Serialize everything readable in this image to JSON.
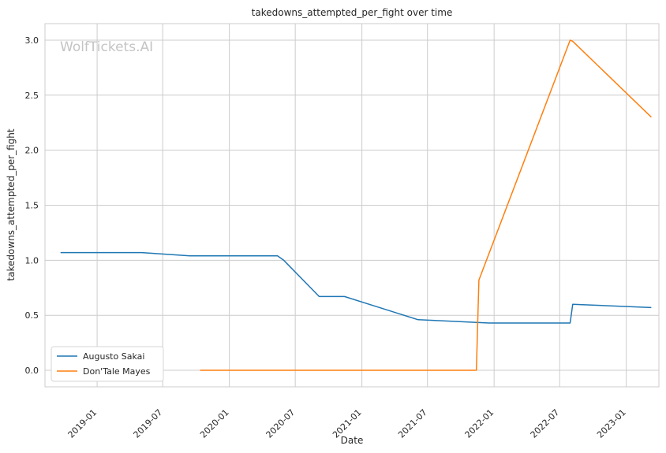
{
  "chart_data": {
    "type": "line",
    "title": "takedowns_attempted_per_fight over time",
    "xlabel": "Date",
    "ylabel": "takedowns_attempted_per_fight",
    "watermark": "WolfTickets.AI",
    "grid": true,
    "legend_position": "lower-left",
    "x_ticks": [
      "2019-01",
      "2019-07",
      "2020-01",
      "2020-07",
      "2021-01",
      "2021-07",
      "2022-01",
      "2022-07",
      "2023-01"
    ],
    "y_ticks": [
      "0.0",
      "0.5",
      "1.0",
      "1.5",
      "2.0",
      "2.5",
      "3.0"
    ],
    "xlim": [
      "2018-08-10",
      "2023-04-01"
    ],
    "ylim": [
      -0.15,
      3.15
    ],
    "series": [
      {
        "name": "Augusto Sakai",
        "color": "#1f77b4",
        "x": [
          "2018-09-22",
          "2019-05-04",
          "2019-09-14",
          "2020-05-13",
          "2020-05-30",
          "2020-09-05",
          "2020-11-14",
          "2021-06-05",
          "2021-12-18",
          "2022-07-30",
          "2022-08-06",
          "2023-03-11"
        ],
        "y": [
          1.07,
          1.07,
          1.04,
          1.04,
          1.0,
          0.67,
          0.67,
          0.46,
          0.43,
          0.43,
          0.6,
          0.57
        ]
      },
      {
        "name": "Don'Tale Mayes",
        "color": "#ff7f0e",
        "x": [
          "2019-10-12",
          "2021-11-13",
          "2021-11-20",
          "2022-07-30",
          "2022-08-06",
          "2023-03-11"
        ],
        "y": [
          0.0,
          0.0,
          0.82,
          3.0,
          2.99,
          2.3
        ]
      }
    ]
  }
}
